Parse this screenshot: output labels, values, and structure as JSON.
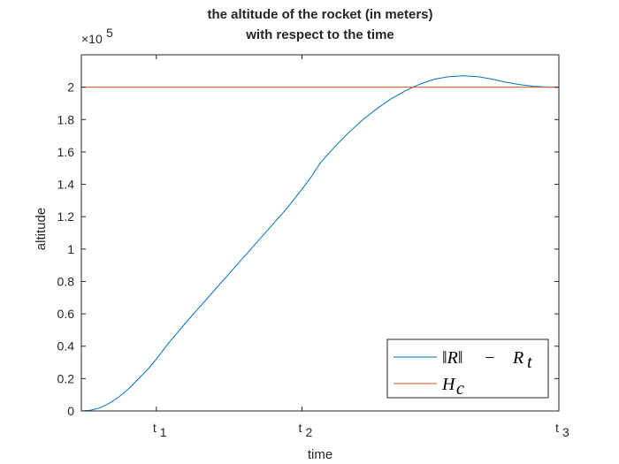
{
  "chart_data": {
    "type": "line",
    "title_lines": [
      "the altitude of the rocket (in meters)",
      "with respect to the time"
    ],
    "xlabel": "time",
    "ylabel": "altitude",
    "y_exponent_label": "×10",
    "y_exponent_power": "5",
    "xlim": [
      0,
      1
    ],
    "ylim": [
      0,
      2.2
    ],
    "y_scale_note": "values in units of 10^5 meters",
    "yticks": [
      0,
      0.2,
      0.4,
      0.6,
      0.8,
      1,
      1.2,
      1.4,
      1.6,
      1.8,
      2
    ],
    "ytick_labels": [
      "0",
      "0.2",
      "0.4",
      "0.6",
      "0.8",
      "1",
      "1.2",
      "1.4",
      "1.6",
      "1.8",
      "2"
    ],
    "xticks": [
      {
        "x": 0.157,
        "base": "t",
        "sub": "1"
      },
      {
        "x": 0.462,
        "base": "t",
        "sub": "2"
      },
      {
        "x": 1.0,
        "base": "t",
        "sub": "3"
      }
    ],
    "grid": false,
    "box": true,
    "legend_position": "bottom-right",
    "series": [
      {
        "name": "‖R‖ − R_t",
        "legend_parts": {
          "lhs": "‖R‖",
          "op": "−",
          "rhs_base": "R",
          "rhs_sub": "t"
        },
        "color": "#0072BD",
        "x": [
          0,
          0.02,
          0.04,
          0.06,
          0.08,
          0.1,
          0.12,
          0.14,
          0.157,
          0.18,
          0.2,
          0.22,
          0.25,
          0.28,
          0.31,
          0.34,
          0.37,
          0.4,
          0.43,
          0.462,
          0.48,
          0.5,
          0.53,
          0.56,
          0.59,
          0.62,
          0.65,
          0.68,
          0.71,
          0.74,
          0.77,
          0.8,
          0.83,
          0.86,
          0.89,
          0.92,
          0.95,
          0.98,
          1.0
        ],
        "y": [
          0,
          0.005,
          0.02,
          0.05,
          0.09,
          0.14,
          0.2,
          0.26,
          0.32,
          0.41,
          0.48,
          0.55,
          0.65,
          0.75,
          0.85,
          0.95,
          1.05,
          1.15,
          1.25,
          1.37,
          1.44,
          1.53,
          1.63,
          1.72,
          1.8,
          1.87,
          1.93,
          1.98,
          2.02,
          2.05,
          2.065,
          2.07,
          2.065,
          2.05,
          2.03,
          2.015,
          2.005,
          2.0,
          2.0
        ]
      },
      {
        "name": "H_c",
        "legend_parts": {
          "base": "H",
          "sub": "c"
        },
        "color": "#D95319",
        "x": [
          0,
          1
        ],
        "y": [
          2,
          2
        ]
      }
    ]
  }
}
